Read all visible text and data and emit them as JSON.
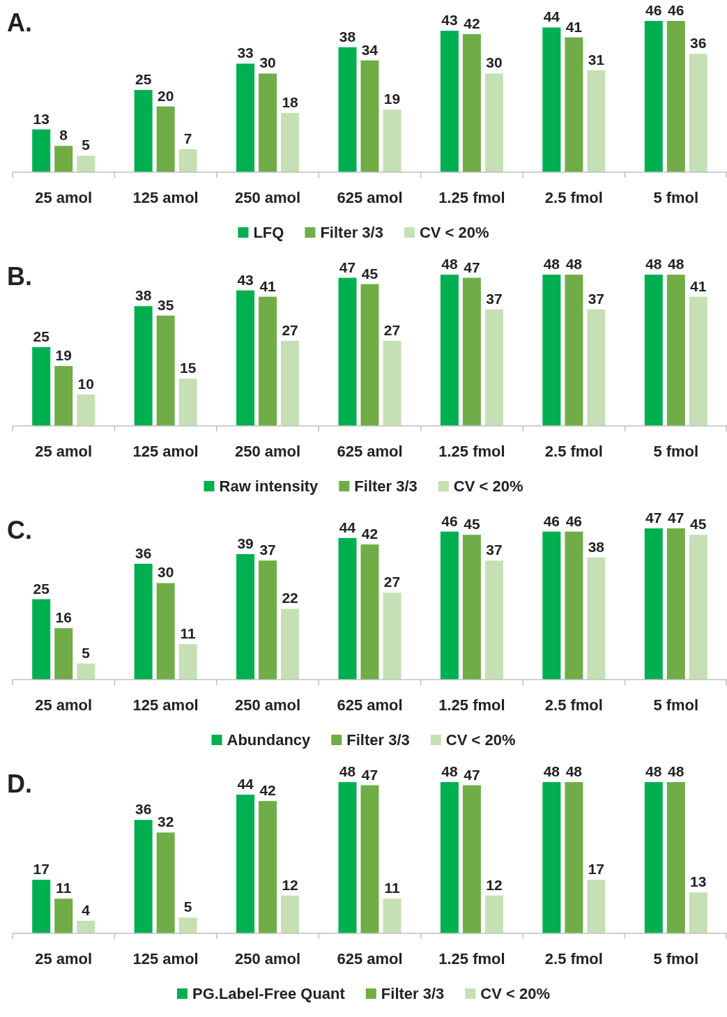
{
  "chart_data": [
    {
      "type": "bar",
      "title": "A.",
      "categories": [
        "25 amol",
        "125 amol",
        "250 amol",
        "625 amol",
        "1.25 fmol",
        "2.5 fmol",
        "5 fmol"
      ],
      "data_labels": true,
      "legend": "bottom",
      "series": [
        {
          "name": "LFQ",
          "color": "#00b050",
          "values": [
            13,
            25,
            33,
            38,
            43,
            44,
            46
          ]
        },
        {
          "name": "Filter 3/3",
          "color": "#70ad47",
          "values": [
            8,
            20,
            30,
            34,
            42,
            41,
            46
          ]
        },
        {
          "name": "CV < 20%",
          "color": "#c5e0b4",
          "values": [
            5,
            7,
            18,
            19,
            30,
            31,
            36
          ]
        }
      ]
    },
    {
      "type": "bar",
      "title": "B.",
      "categories": [
        "25 amol",
        "125 amol",
        "250 amol",
        "625 amol",
        "1.25 fmol",
        "2.5 fmol",
        "5 fmol"
      ],
      "data_labels": true,
      "legend": "bottom",
      "series": [
        {
          "name": "Raw intensity",
          "color": "#00b050",
          "values": [
            25,
            38,
            43,
            47,
            48,
            48,
            48
          ]
        },
        {
          "name": "Filter 3/3",
          "color": "#70ad47",
          "values": [
            19,
            35,
            41,
            45,
            47,
            48,
            48
          ]
        },
        {
          "name": "CV < 20%",
          "color": "#c5e0b4",
          "values": [
            10,
            15,
            27,
            27,
            37,
            37,
            41
          ]
        }
      ]
    },
    {
      "type": "bar",
      "title": "C.",
      "categories": [
        "25 amol",
        "125 amol",
        "250 amol",
        "625 amol",
        "1.25 fmol",
        "2.5 fmol",
        "5 fmol"
      ],
      "data_labels": true,
      "legend": "bottom",
      "series": [
        {
          "name": "Abundancy",
          "color": "#00b050",
          "values": [
            25,
            36,
            39,
            44,
            46,
            46,
            47
          ]
        },
        {
          "name": "Filter 3/3",
          "color": "#70ad47",
          "values": [
            16,
            30,
            37,
            42,
            45,
            46,
            47
          ]
        },
        {
          "name": "CV < 20%",
          "color": "#c5e0b4",
          "values": [
            5,
            11,
            22,
            27,
            37,
            38,
            45
          ]
        }
      ]
    },
    {
      "type": "bar",
      "title": "D.",
      "categories": [
        "25 amol",
        "125 amol",
        "250 amol",
        "625 amol",
        "1.25 fmol",
        "2.5 fmol",
        "5 fmol"
      ],
      "data_labels": true,
      "legend": "bottom",
      "series": [
        {
          "name": "PG.Label-Free Quant",
          "color": "#00b050",
          "values": [
            17,
            36,
            44,
            48,
            48,
            48,
            48
          ]
        },
        {
          "name": "Filter 3/3",
          "color": "#70ad47",
          "values": [
            11,
            32,
            42,
            47,
            47,
            48,
            48
          ]
        },
        {
          "name": "CV < 20%",
          "color": "#c5e0b4",
          "values": [
            4,
            5,
            12,
            11,
            12,
            17,
            13
          ]
        }
      ]
    }
  ]
}
